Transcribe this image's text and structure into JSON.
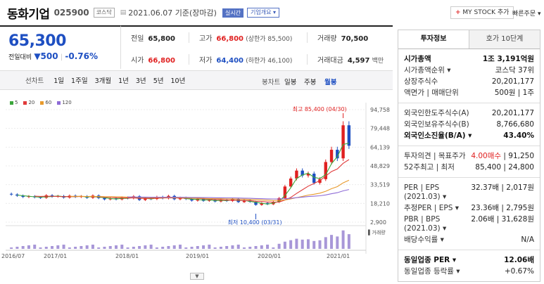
{
  "header": {
    "title": "동화기업",
    "code": "025900",
    "market": "코스닥",
    "date_icon": "▤",
    "date": "2021.06.07 기준(장마감)",
    "realtime": "실시간",
    "summary": "기업개요 ▾",
    "mystock_plus": "+",
    "mystock_label": "MY STOCK 추가",
    "quick_order": "빠른주문 ▾"
  },
  "price": {
    "current": "65,300",
    "change_label": "전일대비",
    "change_arrow": "▼",
    "change_amount": "500",
    "change_sep": "|",
    "change_pct": "-0.76%"
  },
  "quotes": {
    "prev_label": "전일",
    "prev_value": "65,800",
    "high_label": "고가",
    "high_value": "66,800",
    "upper_limit": "(상한가 85,500)",
    "volume_label": "거래량",
    "volume_value": "70,500",
    "open_label": "시가",
    "open_value": "66,800",
    "low_label": "저가",
    "low_value": "64,400",
    "lower_limit": "(하한가 46,100)",
    "amount_label": "거래대금",
    "amount_value": "4,597",
    "amount_unit": "백만"
  },
  "period": {
    "label": "선차트",
    "items": [
      "1일",
      "1주일",
      "3개월",
      "1년",
      "3년",
      "5년",
      "10년"
    ],
    "candle_label": "봉차트",
    "candle_items": [
      "일봉",
      "주봉",
      "월봉"
    ],
    "active_candle": "월봉"
  },
  "chart_data": {
    "type": "candlestick",
    "legend": [
      {
        "name": "5",
        "color": "#3aa63a"
      },
      {
        "name": "20",
        "color": "#e03a3a"
      },
      {
        "name": "60",
        "color": "#e89a2c"
      },
      {
        "name": "120",
        "color": "#8e6bd6"
      }
    ],
    "y_ticks": [
      "94,758",
      "79,448",
      "64,139",
      "48,829",
      "33,519",
      "18,210",
      "2,900"
    ],
    "x_ticks": [
      "2016/07",
      "2017/01",
      "2018/01",
      "2019/01",
      "2020/01",
      "2021/01"
    ],
    "ylim": [
      2900,
      94758
    ],
    "max_annotation": "최고 85,400 (04/30)",
    "min_annotation": "최저 10,400 (03/31)",
    "volume_label": "거래량",
    "close": [
      25500,
      24500,
      23500,
      24000,
      23200,
      22800,
      24800,
      23800,
      24200,
      23000,
      24500,
      23600,
      24000,
      22800,
      24600,
      22600,
      21500,
      22400,
      21500,
      23000,
      22400,
      24000,
      21000,
      22500,
      21800,
      23500,
      22400,
      24300,
      21600,
      22800,
      21800,
      20500,
      22000,
      20300,
      21200,
      19800,
      21300,
      20200,
      21900,
      19300,
      20800,
      19500,
      17000,
      18500,
      17500,
      19500,
      22500,
      32000,
      38500,
      45000,
      41000,
      42500,
      35000,
      38000,
      52000,
      62000,
      55000,
      82000,
      65300
    ]
  },
  "side": {
    "tabs": [
      "투자정보",
      "호가 10단계"
    ],
    "market_cap": [
      {
        "k": "시가총액",
        "v": "1조 3,191억원",
        "bold": true
      },
      {
        "k": "시가총액순위 ▾",
        "v": "코스닥 37위"
      },
      {
        "k": "상장주식수",
        "v": "20,201,177"
      },
      {
        "k": "액면가 | 매매단위",
        "v": "500원 | 1주"
      }
    ],
    "foreign": [
      {
        "k": "외국인한도주식수(A)",
        "v": "20,201,177"
      },
      {
        "k": "외국인보유주식수(B)",
        "v": "8,766,680"
      },
      {
        "k": "외국인소진율(B/A) ▾",
        "v": "43.40%",
        "bold": true
      }
    ],
    "opinion": [
      {
        "k": "투자의견 | 목표주가",
        "v": "4.00매수 | 91,250",
        "red": "4.00매수"
      },
      {
        "k": "52주최고 | 최저",
        "v": "85,400 | 24,800"
      }
    ],
    "per": [
      {
        "k": "PER | EPS",
        "k2": "(2021.03) ▾",
        "v": "32.37배 | 2,017원"
      },
      {
        "k": "추정PER | EPS ▾",
        "v": "23.36배 | 2,795원"
      },
      {
        "k": "PBR | BPS",
        "k2": "(2021.03) ▾",
        "v": "2.06배 | 31,628원"
      },
      {
        "k": "배당수익률 ▾",
        "v": "N/A"
      }
    ],
    "industry": [
      {
        "k": "동일업종 PER ▾",
        "v": "12.06배",
        "bold": true
      },
      {
        "k": "동일업종 등락률 ▾",
        "v": "+0.67%",
        "red": true
      }
    ]
  }
}
